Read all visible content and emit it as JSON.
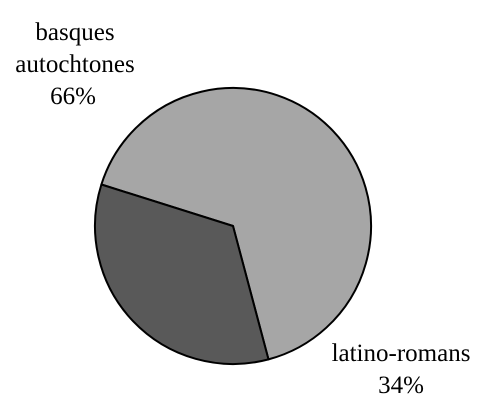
{
  "chart_data": {
    "type": "pie",
    "slices": [
      {
        "label_lines": [
          "basques",
          "autochtones"
        ],
        "percent_label": "66%",
        "value": 66,
        "color": "#a6a6a6"
      },
      {
        "label_lines": [
          "latino-romans"
        ],
        "percent_label": "34%",
        "value": 34,
        "color": "#595959"
      }
    ],
    "start_angle_deg": 197.5,
    "direction": "clockwise"
  }
}
